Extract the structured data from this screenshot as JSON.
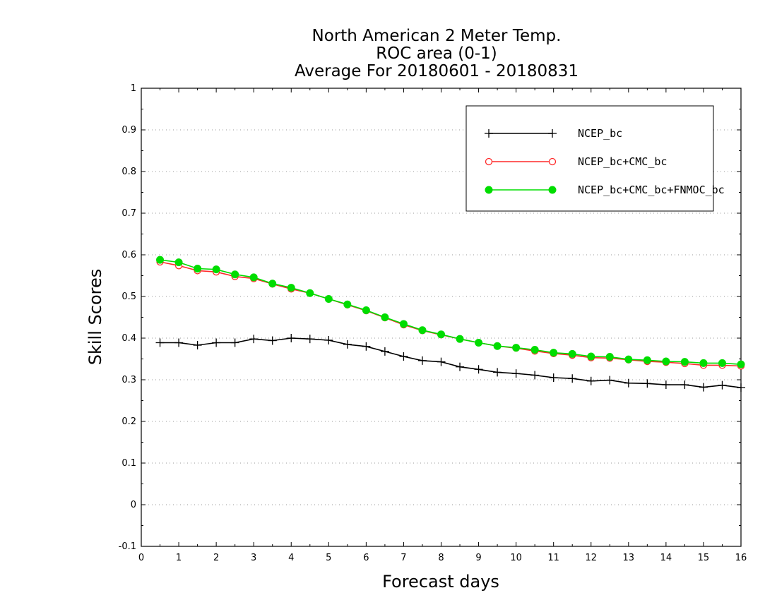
{
  "chart_data": {
    "type": "line",
    "title_lines": [
      "North American 2 Meter Temp.",
      "ROC area (0-1)",
      "Average For 20180601 - 20180831"
    ],
    "xlabel": "Forecast days",
    "ylabel": "Skill Scores",
    "xlim": [
      0,
      16
    ],
    "ylim": [
      -0.1,
      1
    ],
    "x_ticks": [
      0,
      1,
      2,
      3,
      4,
      5,
      6,
      7,
      8,
      9,
      10,
      11,
      12,
      13,
      14,
      15,
      16
    ],
    "y_ticks": [
      -0.1,
      0,
      0.1,
      0.2,
      0.3,
      0.4,
      0.5,
      0.6,
      0.7,
      0.8,
      0.9,
      1
    ],
    "x_tick_labels": [
      "0",
      "1",
      "2",
      "3",
      "4",
      "5",
      "6",
      "7",
      "8",
      "9",
      "10",
      "11",
      "12",
      "13",
      "14",
      "15",
      "16"
    ],
    "y_tick_labels": [
      "-0.1",
      "0",
      "0.1",
      "0.2",
      "0.3",
      "0.4",
      "0.5",
      "0.6",
      "0.7",
      "0.8",
      "0.9",
      "1"
    ],
    "grid": "horizontal dotted",
    "legend_position": "top-right",
    "x": [
      0.5,
      1,
      1.5,
      2,
      2.5,
      3,
      3.5,
      4,
      4.5,
      5,
      5.5,
      6,
      6.5,
      7,
      7.5,
      8,
      8.5,
      9,
      9.5,
      10,
      10.5,
      11,
      11.5,
      12,
      12.5,
      13,
      13.5,
      14,
      14.5,
      15,
      15.5,
      16
    ],
    "series": [
      {
        "name": "NCEP_bc",
        "color": "#000000",
        "marker": "plus",
        "values": [
          0.389,
          0.389,
          0.383,
          0.389,
          0.389,
          0.398,
          0.394,
          0.4,
          0.398,
          0.395,
          0.385,
          0.38,
          0.368,
          0.356,
          0.346,
          0.343,
          0.331,
          0.325,
          0.318,
          0.315,
          0.311,
          0.305,
          0.303,
          0.297,
          0.299,
          0.292,
          0.291,
          0.288,
          0.288,
          0.282,
          0.287,
          0.281
        ]
      },
      {
        "name": "NCEP_bc+CMC_bc",
        "color": "#ff2a2a",
        "marker": "open-circle",
        "values": [
          0.583,
          0.574,
          0.562,
          0.559,
          0.548,
          0.543,
          0.53,
          0.518,
          0.508,
          0.494,
          0.48,
          0.466,
          0.449,
          0.432,
          0.418,
          0.408,
          0.398,
          0.389,
          0.381,
          0.376,
          0.369,
          0.363,
          0.359,
          0.353,
          0.352,
          0.348,
          0.344,
          0.342,
          0.339,
          0.335,
          0.335,
          0.333
        ]
      },
      {
        "name": "NCEP_bc+CMC_bc+FNMOC_bc",
        "color": "#00dd00",
        "marker": "filled-circle",
        "values": [
          0.588,
          0.582,
          0.567,
          0.565,
          0.553,
          0.546,
          0.531,
          0.521,
          0.508,
          0.494,
          0.481,
          0.467,
          0.45,
          0.434,
          0.419,
          0.409,
          0.398,
          0.389,
          0.381,
          0.377,
          0.372,
          0.365,
          0.362,
          0.356,
          0.355,
          0.349,
          0.347,
          0.344,
          0.343,
          0.34,
          0.34,
          0.337
        ]
      }
    ]
  }
}
